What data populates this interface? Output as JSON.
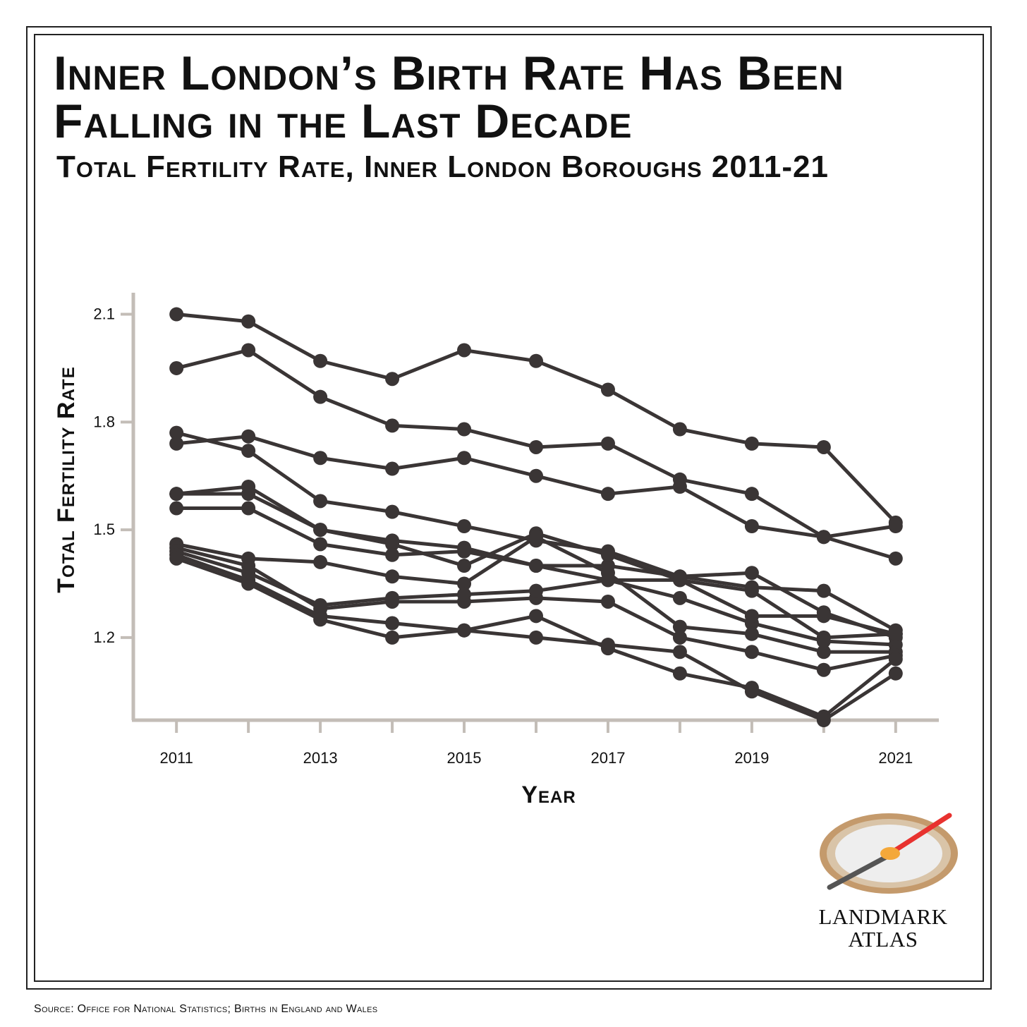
{
  "title": "Inner London’s Birth Rate Has Been Falling in the Last Decade",
  "subtitle": "Total Fertility Rate, Inner London Boroughs 2011-21",
  "source": "Source: Office for National Statistics; Births in England and Wales",
  "logo": {
    "line1": "LANDMARK",
    "line2": "ATLAS"
  },
  "colors": {
    "line": "#3a3535",
    "axis": "#c3bdb7",
    "frame": "#222222"
  },
  "chart_data": {
    "type": "line",
    "xlabel": "Year",
    "ylabel": "Total Fertility Rate",
    "x": [
      2011,
      2012,
      2013,
      2014,
      2015,
      2016,
      2017,
      2018,
      2019,
      2020,
      2021
    ],
    "xticks": [
      "2011",
      "2013",
      "2015",
      "2017",
      "2019",
      "2021"
    ],
    "yticks": [
      {
        "value": 2.1,
        "label": "2.1"
      },
      {
        "value": 1.8,
        "label": "1.8"
      },
      {
        "value": 1.5,
        "label": "1.5"
      },
      {
        "value": 1.2,
        "label": "1.2"
      }
    ],
    "xlim": [
      2010.4,
      2021.6
    ],
    "ylim": [
      0.97,
      2.16
    ],
    "grid": false,
    "legend": "none",
    "series": [
      {
        "values": [
          2.1,
          2.08,
          1.97,
          1.92,
          2.0,
          1.97,
          1.89,
          1.78,
          1.74,
          1.73,
          1.52
        ]
      },
      {
        "values": [
          1.95,
          2.0,
          1.87,
          1.79,
          1.78,
          1.73,
          1.74,
          1.64,
          1.6,
          1.48,
          1.51
        ]
      },
      {
        "values": [
          1.77,
          1.72,
          1.58,
          1.55,
          1.51,
          1.47,
          1.44,
          1.37,
          1.34,
          1.33,
          1.22
        ]
      },
      {
        "values": [
          1.74,
          1.76,
          1.7,
          1.67,
          1.7,
          1.65,
          1.6,
          1.62,
          1.51,
          1.48,
          1.42
        ]
      },
      {
        "values": [
          1.6,
          1.62,
          1.5,
          1.47,
          1.45,
          1.4,
          1.4,
          1.37,
          1.38,
          1.27,
          1.2
        ]
      },
      {
        "values": [
          1.6,
          1.6,
          1.5,
          1.46,
          1.4,
          1.49,
          1.43,
          1.36,
          1.33,
          1.2,
          1.21
        ]
      },
      {
        "values": [
          1.56,
          1.56,
          1.46,
          1.43,
          1.44,
          1.4,
          1.36,
          1.31,
          1.24,
          1.19,
          1.18
        ]
      },
      {
        "values": [
          1.46,
          1.42,
          1.41,
          1.37,
          1.35,
          1.48,
          1.38,
          1.23,
          1.21,
          1.16,
          1.16
        ]
      },
      {
        "values": [
          1.45,
          1.4,
          1.28,
          1.3,
          1.3,
          1.31,
          1.3,
          1.2,
          1.16,
          1.11,
          1.15
        ]
      },
      {
        "values": [
          1.44,
          1.38,
          1.29,
          1.31,
          1.32,
          1.33,
          1.36,
          1.36,
          1.26,
          1.26,
          1.21
        ]
      },
      {
        "values": [
          1.43,
          1.36,
          1.26,
          1.24,
          1.22,
          1.26,
          1.17,
          1.1,
          1.06,
          0.98,
          1.14
        ]
      },
      {
        "values": [
          1.42,
          1.35,
          1.25,
          1.2,
          1.22,
          1.2,
          1.18,
          1.16,
          1.05,
          0.97,
          1.1
        ]
      }
    ]
  }
}
